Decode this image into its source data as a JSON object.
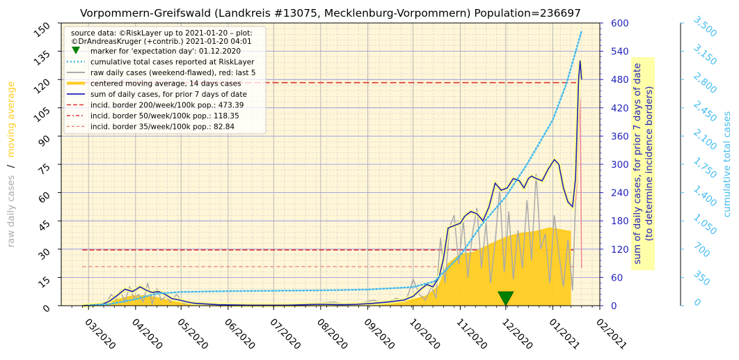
{
  "chart_data": {
    "type": "line",
    "title": "Vorpommern-Greifswald (Landkreis #13075, Mecklenburg-Vorpommern) Population=236697",
    "left_axis_label": {
      "part1": "raw daily cases",
      "separator": "/",
      "part2": "moving average",
      "color_part1": "#aaaaaa",
      "color_part2": "#ffcc22"
    },
    "left_axis": {
      "min": 0,
      "max": 150,
      "ticks": [
        0,
        15,
        30,
        45,
        60,
        75,
        90,
        105,
        120,
        135,
        150
      ]
    },
    "right_axis_1": {
      "label_line1": "sum of daily cases, for prior 7 days of date",
      "label_line2": "(to determine incidence borders)",
      "min": 0,
      "max": 600,
      "ticks": [
        0,
        60,
        120,
        180,
        240,
        300,
        360,
        420,
        480,
        540,
        600
      ],
      "color": "#1f1fbb"
    },
    "right_axis_2": {
      "label": "cumulative total cases",
      "min": 0,
      "max": 3500,
      "ticks": [
        "0",
        "350",
        "700",
        "1,050",
        "1,400",
        "1,750",
        "2,100",
        "2,450",
        "2,800",
        "3,150",
        "3,500"
      ],
      "color": "#44bbee"
    },
    "x_axis": {
      "start": "2020-02-12",
      "end": "2021-02-01",
      "tick_labels": [
        {
          "date": "2020-03-01",
          "label": "03/2020"
        },
        {
          "date": "2020-04-01",
          "label": "04/2020"
        },
        {
          "date": "2020-05-01",
          "label": "05/2020"
        },
        {
          "date": "2020-06-01",
          "label": "06/2020"
        },
        {
          "date": "2020-07-01",
          "label": "07/2020"
        },
        {
          "date": "2020-08-01",
          "label": "08/2020"
        },
        {
          "date": "2020-09-01",
          "label": "09/2020"
        },
        {
          "date": "2020-10-01",
          "label": "10/2020"
        },
        {
          "date": "2020-11-01",
          "label": "11/2020"
        },
        {
          "date": "2020-12-01",
          "label": "12/2020"
        },
        {
          "date": "2021-01-01",
          "label": "01/2021"
        },
        {
          "date": "2021-02-01",
          "label": "02/2021"
        }
      ]
    },
    "legend": {
      "placement": "upper-left",
      "header_line1": "source data: ©RiskLayer up to 2021-01-20 – plot:",
      "header_line2": "©DrAndreasKruger (+contrib.) 2021-01-20 04:01",
      "entries": [
        {
          "label": "marker for 'expectation day': 01.12.2020",
          "style": "marker"
        },
        {
          "label": "cumulative total cases reported at RiskLayer",
          "style": "dotted"
        },
        {
          "label": "raw daily cases (weekend-flawed), red: last 5",
          "style": "raw"
        },
        {
          "label": "centered moving average, 14 days cases",
          "style": "ma"
        },
        {
          "label": "sum of daily cases, for prior 7 days of date",
          "style": "sum7"
        },
        {
          "label": "incid. border 200/week/100k pop.: 473.39",
          "style": "dash200"
        },
        {
          "label": "incid. border 50/week/100k pop.: 118.35",
          "style": "dash50"
        },
        {
          "label": "incid. border 35/week/100k pop.: 82.84",
          "style": "dash35"
        }
      ]
    },
    "expectation_day": "2020-12-01",
    "incidence_borders": [
      {
        "name": "200/week/100k",
        "value_7day_sum": 473.39,
        "color": "#dd3333"
      },
      {
        "name": "50/week/100k",
        "value_7day_sum": 118.35,
        "color": "#dd3333"
      },
      {
        "name": "35/week/100k",
        "value_7day_sum": 82.84,
        "color": "#ee7766"
      }
    ],
    "incidence_border_start": "2020-02-26",
    "series": [
      {
        "name": "sum of daily cases, for prior 7 days of date",
        "axis": "right_axis_1",
        "color": "#1f1fbb",
        "x": [
          "2020-02-26",
          "2020-03-10",
          "2020-03-15",
          "2020-03-20",
          "2020-03-25",
          "2020-03-30",
          "2020-04-04",
          "2020-04-08",
          "2020-04-12",
          "2020-04-16",
          "2020-04-20",
          "2020-04-25",
          "2020-04-30",
          "2020-05-05",
          "2020-05-10",
          "2020-05-25",
          "2020-06-15",
          "2020-07-10",
          "2020-08-01",
          "2020-08-15",
          "2020-08-25",
          "2020-09-05",
          "2020-09-15",
          "2020-09-25",
          "2020-10-01",
          "2020-10-06",
          "2020-10-10",
          "2020-10-14",
          "2020-10-18",
          "2020-10-21",
          "2020-10-24",
          "2020-10-28",
          "2020-11-01",
          "2020-11-04",
          "2020-11-08",
          "2020-11-12",
          "2020-11-16",
          "2020-11-20",
          "2020-11-24",
          "2020-11-28",
          "2020-12-02",
          "2020-12-06",
          "2020-12-10",
          "2020-12-13",
          "2020-12-16",
          "2020-12-18",
          "2020-12-21",
          "2020-12-25",
          "2020-12-29",
          "2021-01-02",
          "2021-01-05",
          "2021-01-08",
          "2021-01-11",
          "2021-01-14",
          "2021-01-16",
          "2021-01-18",
          "2021-01-19",
          "2021-01-20"
        ],
        "y": [
          0,
          3,
          10,
          22,
          35,
          30,
          40,
          33,
          28,
          30,
          25,
          15,
          12,
          8,
          5,
          2,
          1,
          1,
          3,
          2,
          3,
          5,
          8,
          12,
          20,
          35,
          45,
          40,
          60,
          100,
          165,
          170,
          175,
          190,
          200,
          195,
          180,
          210,
          260,
          245,
          250,
          270,
          265,
          250,
          270,
          275,
          270,
          265,
          290,
          310,
          300,
          250,
          220,
          210,
          270,
          480,
          520,
          480
        ]
      },
      {
        "name": "cumulative total cases reported at RiskLayer",
        "axis": "right_axis_2",
        "color": "#44bbee",
        "x": [
          "2020-03-01",
          "2020-03-15",
          "2020-04-01",
          "2020-04-15",
          "2020-05-01",
          "2020-06-01",
          "2020-07-01",
          "2020-08-01",
          "2020-09-01",
          "2020-10-01",
          "2020-10-15",
          "2020-11-01",
          "2020-11-15",
          "2020-12-01",
          "2020-12-15",
          "2021-01-01",
          "2021-01-10",
          "2021-01-20"
        ],
        "y": [
          2,
          20,
          80,
          150,
          170,
          180,
          185,
          190,
          200,
          230,
          300,
          620,
          1000,
          1350,
          1750,
          2300,
          2750,
          3400
        ]
      },
      {
        "name": "centered moving average, 14 days cases",
        "axis": "left_axis",
        "color": "#ffcc22",
        "x": [
          "2020-02-26",
          "2020-03-10",
          "2020-03-20",
          "2020-03-30",
          "2020-04-08",
          "2020-04-15",
          "2020-04-25",
          "2020-05-05",
          "2020-05-20",
          "2020-06-15",
          "2020-07-15",
          "2020-08-15",
          "2020-09-15",
          "2020-10-01",
          "2020-10-10",
          "2020-10-18",
          "2020-10-24",
          "2020-11-01",
          "2020-11-10",
          "2020-11-20",
          "2020-12-01",
          "2020-12-10",
          "2020-12-20",
          "2020-12-30",
          "2021-01-06",
          "2021-01-13"
        ],
        "y": [
          0,
          1,
          3,
          5,
          5,
          4,
          2,
          1,
          0.3,
          0.1,
          0.1,
          0.3,
          1,
          3,
          5,
          10,
          22,
          27,
          28,
          32,
          36,
          38,
          39,
          41,
          40,
          39
        ]
      },
      {
        "name": "raw daily cases (weekend-flawed), red: last 5",
        "axis": "left_axis",
        "color": "#aaaaaa",
        "x": [
          "2020-03-10",
          "2020-03-13",
          "2020-03-16",
          "2020-03-19",
          "2020-03-22",
          "2020-03-25",
          "2020-03-28",
          "2020-03-31",
          "2020-04-03",
          "2020-04-06",
          "2020-04-09",
          "2020-04-12",
          "2020-04-15",
          "2020-04-18",
          "2020-04-21",
          "2020-04-24",
          "2020-04-28",
          "2020-05-03",
          "2020-05-10",
          "2020-06-01",
          "2020-07-01",
          "2020-08-10",
          "2020-08-20",
          "2020-09-05",
          "2020-09-12",
          "2020-09-20",
          "2020-09-26",
          "2020-10-01",
          "2020-10-05",
          "2020-10-09",
          "2020-10-13",
          "2020-10-16",
          "2020-10-19",
          "2020-10-22",
          "2020-10-25",
          "2020-10-28",
          "2020-10-31",
          "2020-11-03",
          "2020-11-06",
          "2020-11-09",
          "2020-11-12",
          "2020-11-15",
          "2020-11-18",
          "2020-11-21",
          "2020-11-24",
          "2020-11-27",
          "2020-11-30",
          "2020-12-03",
          "2020-12-06",
          "2020-12-09",
          "2020-12-12",
          "2020-12-15",
          "2020-12-18",
          "2020-12-21",
          "2020-12-24",
          "2020-12-27",
          "2020-12-30",
          "2021-01-02",
          "2021-01-05",
          "2021-01-08",
          "2021-01-11",
          "2021-01-14",
          "2021-01-16"
        ],
        "y": [
          0,
          2,
          6,
          3,
          8,
          2,
          10,
          4,
          6,
          2,
          12,
          1,
          9,
          3,
          5,
          2,
          6,
          1,
          2,
          0,
          0,
          2,
          0,
          3,
          1,
          4,
          2,
          14,
          6,
          3,
          10,
          4,
          36,
          12,
          42,
          48,
          22,
          45,
          15,
          38,
          52,
          20,
          44,
          12,
          34,
          62,
          18,
          50,
          14,
          40,
          20,
          56,
          24,
          70,
          30,
          38,
          12,
          48,
          28,
          10,
          35,
          8,
          55
        ]
      },
      {
        "name": "raw daily cases, last 5",
        "axis": "left_axis",
        "color": "#ee8899",
        "x": [
          "2021-01-16",
          "2021-01-17",
          "2021-01-18",
          "2021-01-19",
          "2021-01-20"
        ],
        "y": [
          55,
          65,
          92,
          110,
          20
        ]
      }
    ]
  }
}
